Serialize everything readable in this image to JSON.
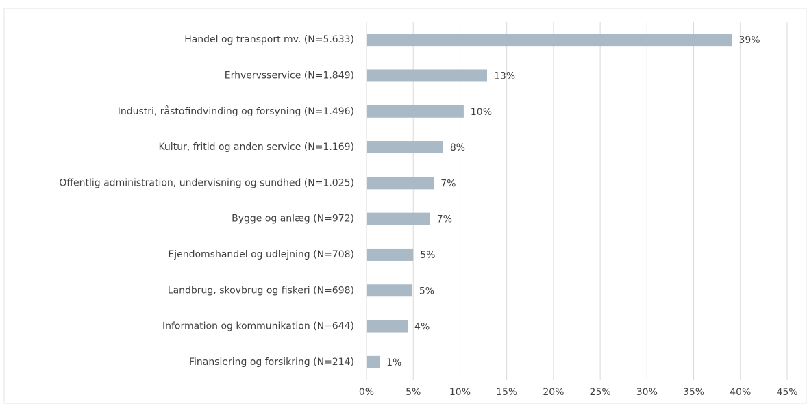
{
  "chart_data": {
    "type": "bar",
    "orientation": "horizontal",
    "categories": [
      "Handel og transport mv. (N=5.633)",
      "Erhvervsservice (N=1.849)",
      "Industri, råstofindvinding og forsyning (N=1.496)",
      "Kultur, fritid og anden service (N=1.169)",
      "Offentlig administration, undervisning og sundhed (N=1.025)",
      "Bygge og anlæg (N=972)",
      "Ejendomshandel og udlejning (N=708)",
      "Landbrug, skovbrug og fiskeri (N=698)",
      "Information og kommunikation (N=644)",
      "Finansiering og forsikring (N=214)"
    ],
    "values": [
      39.1,
      12.9,
      10.4,
      8.2,
      7.2,
      6.8,
      5.0,
      4.9,
      4.4,
      1.4
    ],
    "value_labels": [
      "39%",
      "13%",
      "10%",
      "8%",
      "7%",
      "7%",
      "5%",
      "5%",
      "4%",
      "1%"
    ],
    "color": "#a9bac6",
    "xlim": [
      0,
      45
    ],
    "xticks": [
      {
        "value": 0,
        "label": "0%"
      },
      {
        "value": 5,
        "label": "5%"
      },
      {
        "value": 10,
        "label": "10%"
      },
      {
        "value": 15,
        "label": "15%"
      },
      {
        "value": 20,
        "label": "20%"
      },
      {
        "value": 25,
        "label": "25%"
      },
      {
        "value": 30,
        "label": "30%"
      },
      {
        "value": 35,
        "label": "35%"
      },
      {
        "value": 40,
        "label": "40%"
      },
      {
        "value": 45,
        "label": "45%"
      }
    ],
    "grid": true
  }
}
